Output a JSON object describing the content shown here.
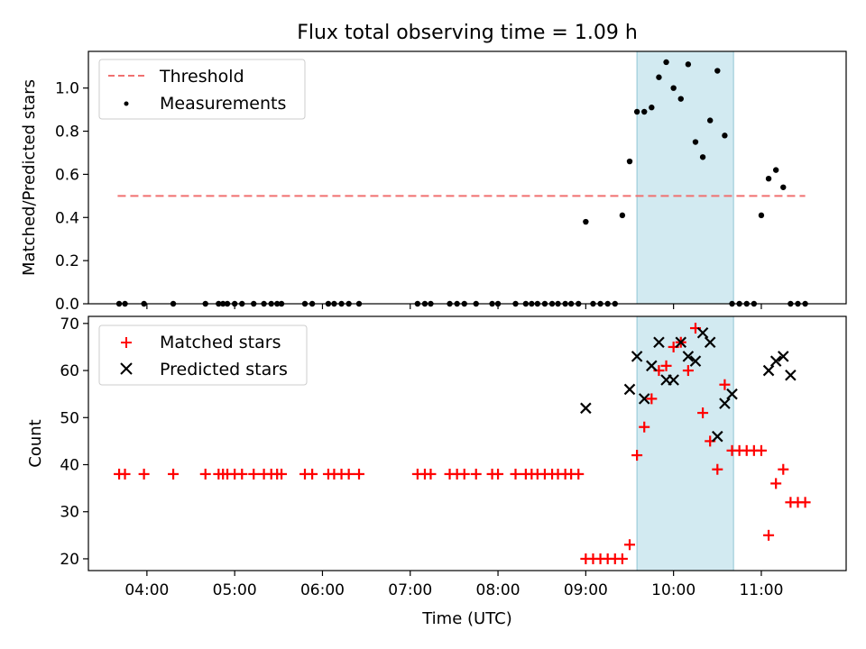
{
  "chart_data": [
    {
      "type": "scatter",
      "title": "Flux total observing time = 1.09 h",
      "xlabel": "",
      "ylabel": "Matched/Predicted stars",
      "xlim": [
        "03:20",
        "11:58"
      ],
      "ylim": [
        0,
        1.17
      ],
      "yticks": [
        "0.0",
        "0.2",
        "0.4",
        "0.6",
        "0.8",
        "1.0"
      ],
      "legend": "top-left",
      "highlight_span": [
        "09:35",
        "10:41"
      ],
      "colors": {
        "threshold": "#f07070",
        "measurements": "#000000",
        "span": "#add8e6"
      },
      "series": [
        {
          "name": "Threshold",
          "style": "dashed-line",
          "x": [
            "03:40",
            "11:30"
          ],
          "y": [
            0.5,
            0.5
          ]
        },
        {
          "name": "Measurements",
          "style": "dot",
          "x": [
            "03:41",
            "03:45",
            "03:58",
            "04:18",
            "04:40",
            "04:49",
            "04:52",
            "04:55",
            "05:00",
            "05:05",
            "05:13",
            "05:20",
            "05:25",
            "05:29",
            "05:32",
            "05:48",
            "05:53",
            "06:04",
            "06:08",
            "06:13",
            "06:18",
            "06:25",
            "07:05",
            "07:10",
            "07:14",
            "07:27",
            "07:32",
            "07:37",
            "07:45",
            "07:56",
            "08:00",
            "08:12",
            "08:19",
            "08:23",
            "08:27",
            "08:32",
            "08:37",
            "08:41",
            "08:46",
            "08:50",
            "08:55",
            "09:00",
            "09:05",
            "09:10",
            "09:15",
            "09:20",
            "09:25",
            "09:30",
            "09:35",
            "09:40",
            "09:45",
            "09:50",
            "09:55",
            "10:00",
            "10:05",
            "10:10",
            "10:15",
            "10:20",
            "10:25",
            "10:30",
            "10:35",
            "10:40",
            "10:45",
            "10:50",
            "10:55",
            "11:00",
            "11:05",
            "11:10",
            "11:15",
            "11:20",
            "11:25",
            "11:30"
          ],
          "y": [
            0,
            0,
            0,
            0,
            0,
            0,
            0,
            0,
            0,
            0,
            0,
            0,
            0,
            0,
            0,
            0,
            0,
            0,
            0,
            0,
            0,
            0,
            0,
            0,
            0,
            0,
            0,
            0,
            0,
            0,
            0,
            0,
            0,
            0,
            0,
            0,
            0,
            0,
            0,
            0,
            0,
            0.38,
            0,
            0,
            0,
            0,
            0.41,
            0.66,
            0.89,
            0.89,
            0.91,
            1.05,
            1.12,
            1.0,
            0.95,
            1.11,
            0.75,
            0.68,
            0.85,
            1.08,
            0.78,
            0,
            0,
            0,
            0,
            0.41,
            0.58,
            0.62,
            0.54,
            0,
            0,
            0
          ]
        }
      ]
    },
    {
      "type": "scatter",
      "title": "",
      "xlabel": "Time (UTC)",
      "ylabel": "Count",
      "xlim": [
        "03:20",
        "11:58"
      ],
      "ylim": [
        17.5,
        71.5
      ],
      "yticks": [
        "20",
        "30",
        "40",
        "50",
        "60",
        "70"
      ],
      "xticks": [
        "04:00",
        "05:00",
        "06:00",
        "07:00",
        "08:00",
        "09:00",
        "10:00",
        "11:00"
      ],
      "legend": "top-left",
      "highlight_span": [
        "09:35",
        "10:41"
      ],
      "colors": {
        "matched": "#ff0000",
        "predicted": "#000000",
        "span": "#add8e6"
      },
      "series": [
        {
          "name": "Matched stars",
          "marker": "plus",
          "x": [
            "03:41",
            "03:45",
            "03:58",
            "04:18",
            "04:40",
            "04:49",
            "04:52",
            "04:55",
            "05:00",
            "05:05",
            "05:13",
            "05:20",
            "05:25",
            "05:29",
            "05:32",
            "05:48",
            "05:53",
            "06:04",
            "06:08",
            "06:13",
            "06:18",
            "06:25",
            "07:05",
            "07:10",
            "07:14",
            "07:27",
            "07:32",
            "07:37",
            "07:45",
            "07:56",
            "08:00",
            "08:12",
            "08:19",
            "08:23",
            "08:27",
            "08:32",
            "08:37",
            "08:41",
            "08:46",
            "08:50",
            "08:55",
            "09:00",
            "09:05",
            "09:10",
            "09:15",
            "09:20",
            "09:25",
            "09:30",
            "09:35",
            "09:40",
            "09:45",
            "09:50",
            "09:55",
            "10:00",
            "10:05",
            "10:10",
            "10:15",
            "10:20",
            "10:25",
            "10:30",
            "10:35",
            "10:40",
            "10:45",
            "10:50",
            "10:55",
            "11:00",
            "11:05",
            "11:10",
            "11:15",
            "11:20",
            "11:25",
            "11:30"
          ],
          "y": [
            38,
            38,
            38,
            38,
            38,
            38,
            38,
            38,
            38,
            38,
            38,
            38,
            38,
            38,
            38,
            38,
            38,
            38,
            38,
            38,
            38,
            38,
            38,
            38,
            38,
            38,
            38,
            38,
            38,
            38,
            38,
            38,
            38,
            38,
            38,
            38,
            38,
            38,
            38,
            38,
            38,
            20,
            20,
            20,
            20,
            20,
            20,
            23,
            42,
            48,
            54,
            60,
            61,
            65,
            66,
            60,
            69,
            51,
            45,
            39,
            57,
            43,
            43,
            43,
            43,
            43,
            25,
            36,
            39,
            32,
            32,
            32
          ]
        },
        {
          "name": "Predicted stars",
          "marker": "x",
          "x": [
            "09:00",
            "09:30",
            "09:35",
            "09:40",
            "09:45",
            "09:50",
            "09:55",
            "10:00",
            "10:05",
            "10:10",
            "10:15",
            "10:20",
            "10:25",
            "10:30",
            "10:35",
            "10:40",
            "11:05",
            "11:10",
            "11:15",
            "11:20"
          ],
          "y": [
            52,
            56,
            63,
            54,
            61,
            66,
            58,
            58,
            66,
            63,
            62,
            68,
            66,
            46,
            53,
            55,
            60,
            62,
            63,
            59
          ]
        }
      ]
    }
  ]
}
